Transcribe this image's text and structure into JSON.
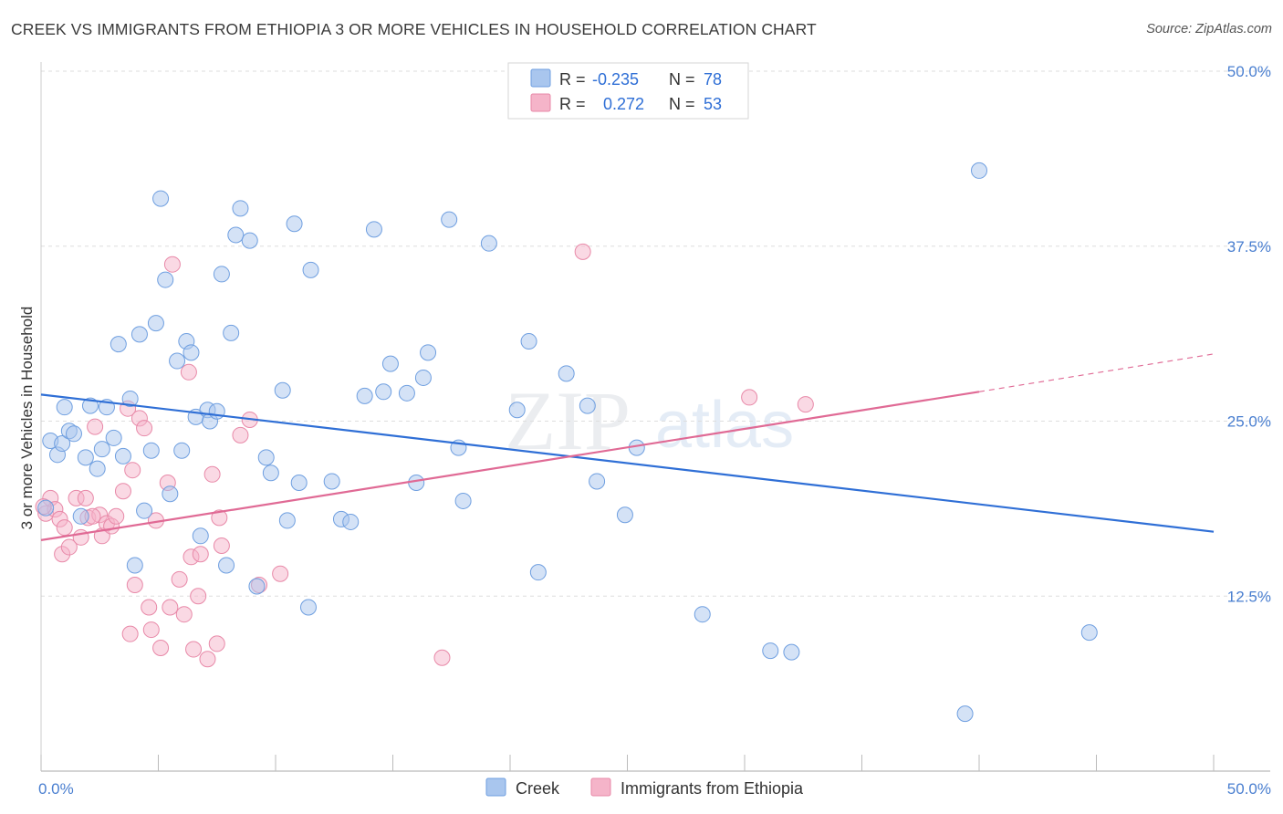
{
  "title": "CREEK VS IMMIGRANTS FROM ETHIOPIA 3 OR MORE VEHICLES IN HOUSEHOLD CORRELATION CHART",
  "source": "Source: ZipAtlas.com",
  "colors": {
    "creek_fill": "#a9c6ee",
    "creek_stroke": "#6f9fe0",
    "creek_line": "#2f6fd6",
    "eth_fill": "#f5b4c9",
    "eth_stroke": "#e889a8",
    "eth_line": "#e06a95",
    "grid": "#dedede",
    "tick_label": "#4a7fd0"
  },
  "legend": {
    "rows": [
      {
        "r_label": "R =",
        "r_value": "-0.235",
        "n_label": "N =",
        "n_value": "78"
      },
      {
        "r_label": "R =",
        "r_value": "0.272",
        "n_label": "N =",
        "n_value": "53"
      }
    ]
  },
  "bottom_legend": [
    "Creek",
    "Immigrants from Ethiopia"
  ],
  "watermark": {
    "zip": "ZIP",
    "atlas": "atlas"
  },
  "chart_data": {
    "type": "scatter",
    "title": "CREEK VS IMMIGRANTS FROM ETHIOPIA 3 OR MORE VEHICLES IN HOUSEHOLD CORRELATION CHART",
    "xlabel": "",
    "ylabel": "3 or more Vehicles in Household",
    "xlim": [
      0,
      50
    ],
    "ylim": [
      0,
      50
    ],
    "x_tick_labels": [
      "0.0%",
      "50.0%"
    ],
    "y_ticks": [
      12.5,
      25.0,
      37.5,
      50.0
    ],
    "y_tick_labels": [
      "12.5%",
      "25.0%",
      "37.5%",
      "50.0%"
    ],
    "series": [
      {
        "name": "Creek",
        "r": -0.235,
        "n": 78,
        "trend": {
          "x": [
            0,
            50
          ],
          "y": [
            26.9,
            17.1
          ]
        },
        "points": [
          [
            0.2,
            18.8
          ],
          [
            0.4,
            23.6
          ],
          [
            0.7,
            22.6
          ],
          [
            0.9,
            23.4
          ],
          [
            1.0,
            26.0
          ],
          [
            1.2,
            24.3
          ],
          [
            1.4,
            24.1
          ],
          [
            1.7,
            18.2
          ],
          [
            1.9,
            22.4
          ],
          [
            2.1,
            26.1
          ],
          [
            2.4,
            21.6
          ],
          [
            2.6,
            23.0
          ],
          [
            2.8,
            26.0
          ],
          [
            3.1,
            23.8
          ],
          [
            3.3,
            30.5
          ],
          [
            3.5,
            22.5
          ],
          [
            3.8,
            26.6
          ],
          [
            4.0,
            14.7
          ],
          [
            4.2,
            31.2
          ],
          [
            4.4,
            18.6
          ],
          [
            4.7,
            22.9
          ],
          [
            4.9,
            32.0
          ],
          [
            5.1,
            40.9
          ],
          [
            5.3,
            35.1
          ],
          [
            5.5,
            19.8
          ],
          [
            5.8,
            29.3
          ],
          [
            6.0,
            22.9
          ],
          [
            6.2,
            30.7
          ],
          [
            6.4,
            29.9
          ],
          [
            6.6,
            25.3
          ],
          [
            6.8,
            16.8
          ],
          [
            7.1,
            25.8
          ],
          [
            7.2,
            25.0
          ],
          [
            7.5,
            25.7
          ],
          [
            7.7,
            35.5
          ],
          [
            7.9,
            14.7
          ],
          [
            8.1,
            31.3
          ],
          [
            8.3,
            38.3
          ],
          [
            8.5,
            40.2
          ],
          [
            8.9,
            37.9
          ],
          [
            9.2,
            13.2
          ],
          [
            9.6,
            22.4
          ],
          [
            9.8,
            21.3
          ],
          [
            10.3,
            27.2
          ],
          [
            10.5,
            17.9
          ],
          [
            10.8,
            39.1
          ],
          [
            11.0,
            20.6
          ],
          [
            11.4,
            11.7
          ],
          [
            11.5,
            35.8
          ],
          [
            12.4,
            20.7
          ],
          [
            12.8,
            18.0
          ],
          [
            13.2,
            17.8
          ],
          [
            13.8,
            26.8
          ],
          [
            14.2,
            38.7
          ],
          [
            14.6,
            27.1
          ],
          [
            14.9,
            29.1
          ],
          [
            15.6,
            27.0
          ],
          [
            16.0,
            20.6
          ],
          [
            16.3,
            28.1
          ],
          [
            16.5,
            29.9
          ],
          [
            17.4,
            39.4
          ],
          [
            17.8,
            23.1
          ],
          [
            18.0,
            19.3
          ],
          [
            19.1,
            37.7
          ],
          [
            20.3,
            25.8
          ],
          [
            20.8,
            30.7
          ],
          [
            21.2,
            14.2
          ],
          [
            22.4,
            28.4
          ],
          [
            23.3,
            26.1
          ],
          [
            23.7,
            20.7
          ],
          [
            24.9,
            18.3
          ],
          [
            25.4,
            23.1
          ],
          [
            28.2,
            11.2
          ],
          [
            31.1,
            8.6
          ],
          [
            32.0,
            8.5
          ],
          [
            39.4,
            4.1
          ],
          [
            40.0,
            42.9
          ],
          [
            44.7,
            9.9
          ]
        ]
      },
      {
        "name": "Immigrants from Ethiopia",
        "r": 0.272,
        "n": 53,
        "trend": {
          "x": [
            0,
            40
          ],
          "y": [
            16.5,
            27.1
          ]
        },
        "trend_extension": {
          "x": [
            40,
            50
          ],
          "y": [
            27.1,
            29.8
          ]
        },
        "points": [
          [
            0.2,
            18.4
          ],
          [
            0.4,
            19.5
          ],
          [
            0.6,
            18.7
          ],
          [
            0.8,
            18.0
          ],
          [
            0.9,
            15.5
          ],
          [
            1.0,
            17.4
          ],
          [
            1.2,
            16.0
          ],
          [
            1.5,
            19.5
          ],
          [
            1.7,
            16.7
          ],
          [
            1.9,
            19.5
          ],
          [
            2.0,
            18.1
          ],
          [
            2.3,
            24.6
          ],
          [
            2.5,
            18.3
          ],
          [
            2.6,
            16.8
          ],
          [
            2.8,
            17.7
          ],
          [
            3.0,
            17.5
          ],
          [
            3.2,
            18.2
          ],
          [
            3.5,
            20.0
          ],
          [
            3.7,
            25.9
          ],
          [
            3.8,
            9.8
          ],
          [
            3.9,
            21.5
          ],
          [
            4.0,
            13.3
          ],
          [
            4.2,
            25.2
          ],
          [
            4.4,
            24.5
          ],
          [
            4.6,
            11.7
          ],
          [
            4.7,
            10.1
          ],
          [
            4.9,
            17.9
          ],
          [
            5.1,
            8.8
          ],
          [
            5.4,
            20.6
          ],
          [
            5.5,
            11.7
          ],
          [
            5.6,
            36.2
          ],
          [
            5.9,
            13.7
          ],
          [
            6.1,
            11.2
          ],
          [
            6.3,
            28.5
          ],
          [
            6.4,
            15.3
          ],
          [
            6.5,
            8.7
          ],
          [
            6.7,
            12.5
          ],
          [
            6.8,
            15.5
          ],
          [
            7.1,
            8.0
          ],
          [
            7.3,
            21.2
          ],
          [
            7.5,
            9.1
          ],
          [
            7.6,
            18.1
          ],
          [
            7.7,
            16.1
          ],
          [
            8.5,
            24.0
          ],
          [
            8.9,
            25.1
          ],
          [
            9.3,
            13.3
          ],
          [
            10.2,
            14.1
          ],
          [
            17.1,
            8.1
          ],
          [
            23.1,
            37.1
          ],
          [
            30.2,
            26.7
          ],
          [
            32.6,
            26.2
          ],
          [
            0.1,
            18.9
          ],
          [
            2.2,
            18.2
          ]
        ]
      }
    ]
  }
}
